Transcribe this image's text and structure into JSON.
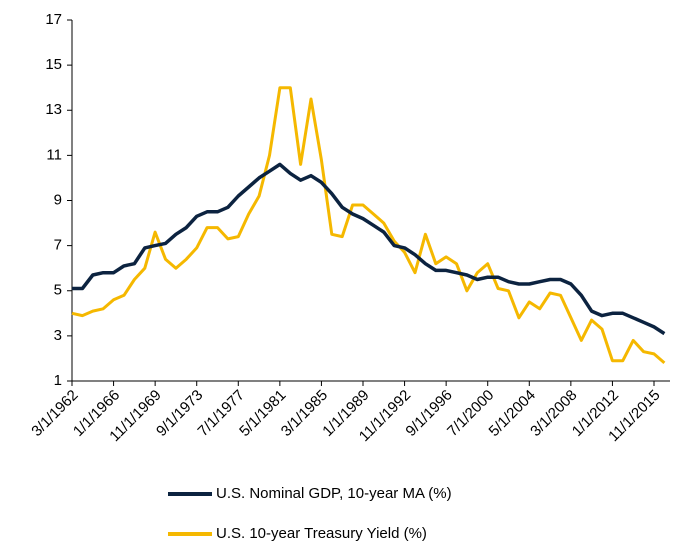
{
  "chart_data": {
    "type": "line",
    "categories": [
      "3/1/1962",
      null,
      null,
      null,
      "1/1/1966",
      null,
      null,
      null,
      "11/1/1969",
      null,
      null,
      null,
      "9/1/1973",
      null,
      null,
      null,
      "7/1/1977",
      null,
      null,
      null,
      "5/1/1981",
      null,
      null,
      null,
      "3/1/1985",
      null,
      null,
      null,
      "1/1/1989",
      null,
      null,
      null,
      "11/1/1992",
      null,
      null,
      null,
      "9/1/1996",
      null,
      null,
      null,
      "7/1/2000",
      null,
      null,
      null,
      "5/1/2004",
      null,
      null,
      null,
      "3/1/2008",
      null,
      null,
      null,
      "1/1/2012",
      null,
      null,
      null,
      "11/1/2015",
      null
    ],
    "series": [
      {
        "name": "U.S. Nominal GDP, 10-year MA (%)",
        "color": "#0c2340",
        "values": [
          5.1,
          5.1,
          5.7,
          5.8,
          5.8,
          6.1,
          6.2,
          6.9,
          7.0,
          7.1,
          7.5,
          7.8,
          8.3,
          8.5,
          8.5,
          8.7,
          9.2,
          9.6,
          10.0,
          10.3,
          10.6,
          10.2,
          9.9,
          10.1,
          9.8,
          9.3,
          8.7,
          8.4,
          8.2,
          7.9,
          7.6,
          7.0,
          6.9,
          6.6,
          6.2,
          5.9,
          5.9,
          5.8,
          5.7,
          5.5,
          5.6,
          5.6,
          5.4,
          5.3,
          5.3,
          5.4,
          5.5,
          5.5,
          5.3,
          4.8,
          4.1,
          3.9,
          4.0,
          4.0,
          3.8,
          3.6,
          3.4,
          3.1
        ]
      },
      {
        "name": "U.S. 10-year Treasury Yield (%)",
        "color": "#f5b800",
        "values": [
          4.0,
          3.9,
          4.1,
          4.2,
          4.6,
          4.8,
          5.5,
          6.0,
          7.6,
          6.4,
          6.0,
          6.4,
          6.9,
          7.8,
          7.8,
          7.3,
          7.4,
          8.4,
          9.2,
          11.0,
          14.0,
          14.0,
          10.6,
          13.5,
          10.8,
          7.5,
          7.4,
          8.8,
          8.8,
          8.4,
          8.0,
          7.2,
          6.7,
          5.8,
          7.5,
          6.2,
          6.5,
          6.2,
          5.0,
          5.8,
          6.2,
          5.1,
          5.0,
          3.8,
          4.5,
          4.2,
          4.9,
          4.8,
          3.8,
          2.8,
          3.7,
          3.3,
          1.9,
          1.9,
          2.8,
          2.3,
          2.2,
          1.8
        ]
      }
    ],
    "ylim": [
      1,
      17
    ],
    "yticks": [
      1,
      3,
      5,
      7,
      9,
      11,
      13,
      15,
      17
    ],
    "grid": false
  }
}
